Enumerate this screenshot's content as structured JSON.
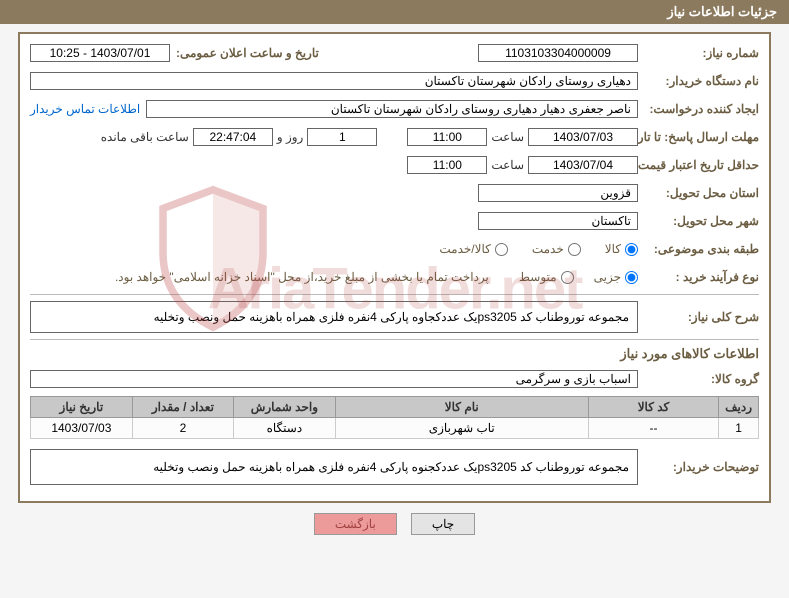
{
  "header": {
    "title": "جزئیات اطلاعات نیاز"
  },
  "fields": {
    "need_number": {
      "label": "شماره نیاز:",
      "value": "1103103304000009"
    },
    "announce_dt": {
      "label": "تاریخ و ساعت اعلان عمومی:",
      "value": "1403/07/01 - 10:25"
    },
    "buyer_org": {
      "label": "نام دستگاه خریدار:",
      "value": "دهیاری روستای رادکان شهرستان تاکستان"
    },
    "requester": {
      "label": "ایجاد کننده درخواست:",
      "value": "ناصر جعفری دهیار دهیاری روستای رادکان شهرستان تاکستان"
    },
    "contact_link": "اطلاعات تماس خریدار",
    "response_deadline": {
      "label": "مهلت ارسال پاسخ: تا تاریخ:",
      "date": "1403/07/03",
      "time_label": "ساعت",
      "time": "11:00"
    },
    "remaining": {
      "prefix_days": "1",
      "label_days": "روز و",
      "time": "22:47:04",
      "label_after": "ساعت باقی مانده"
    },
    "price_validity": {
      "label": "حداقل تاریخ اعتبار قیمت: تا تاریخ:",
      "date": "1403/07/04",
      "time_label": "ساعت",
      "time": "11:00"
    },
    "delivery_province": {
      "label": "استان محل تحویل:",
      "value": "قزوین"
    },
    "delivery_city": {
      "label": "شهر محل تحویل:",
      "value": "تاکستان"
    },
    "category": {
      "label": "طبقه بندی موضوعی:",
      "opts": {
        "goods": "کالا",
        "service": "خدمت",
        "goods_service": "کالا/خدمت"
      },
      "selected": "goods"
    },
    "process_type": {
      "label": "نوع فرآیند خرید :",
      "opts": {
        "partial": "جزیی",
        "medium": "متوسط"
      },
      "selected": "partial",
      "note": "پرداخت تمام یا بخشی از مبلغ خرید،از محل \"اسناد خزانه اسلامی\" خواهد بود."
    },
    "general_desc": {
      "label": "شرح کلی نیاز:",
      "value": "مجموعه توروطناب کد ps3205یک عددکجاوه پارکی 4نفره فلزی همراه باهزینه حمل ونصب وتخلیه"
    },
    "items_section_title": "اطلاعات کالاهای مورد نیاز",
    "goods_group": {
      "label": "گروه کالا:",
      "value": "اسباب بازی و سرگرمی"
    },
    "buyer_desc": {
      "label": "توضیحات خریدار:",
      "value": "مجموعه توروطناب کد ps3205یک عددکجنوه پارکی 4نفره فلزی همراه باهزینه حمل ونصب وتخلیه"
    }
  },
  "table": {
    "columns": [
      "ردیف",
      "کد کالا",
      "نام کالا",
      "واحد شمارش",
      "تعداد / مقدار",
      "تاریخ نیاز"
    ],
    "col_widths": [
      "5%",
      "18%",
      "35%",
      "14%",
      "14%",
      "14%"
    ],
    "rows": [
      [
        "1",
        "--",
        "تاب شهربازی",
        "دستگاه",
        "2",
        "1403/07/03"
      ]
    ]
  },
  "buttons": {
    "print": "چاپ",
    "back": "بازگشت"
  },
  "watermark": {
    "text": "AriaTender.net",
    "shield_stroke": "#c05050"
  },
  "colors": {
    "header_bg": "#8c7a5e",
    "label": "#6b5d42",
    "link": "#0066cc",
    "btn_return_bg": "#ed9a9a"
  }
}
